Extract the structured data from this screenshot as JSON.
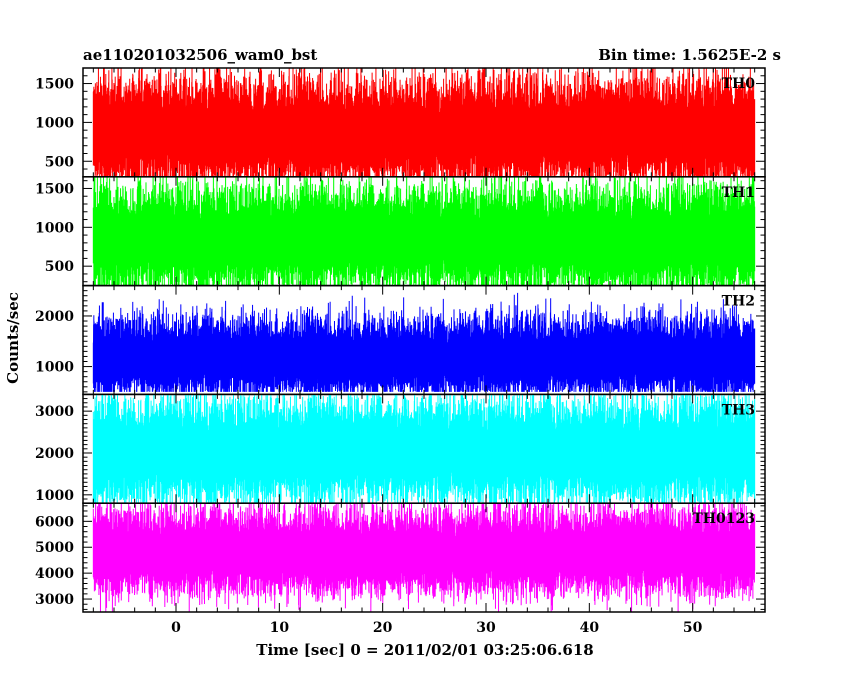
{
  "header": {
    "title": "ae110201032506_wam0_bst",
    "bin_time": "Bin time: 1.5625E-2 s"
  },
  "chart_data": {
    "type": "line",
    "title": "ae110201032506_wam0_bst",
    "subtitle": "Bin time: 1.5625E-2 s",
    "xlabel": "Time [sec] 0 = 2011/02/01 03:25:06.618",
    "ylabel": "Counts/sec",
    "xlim": [
      -9,
      57
    ],
    "x_data_range": [
      -8,
      56
    ],
    "x_ticks": [
      0,
      10,
      20,
      30,
      40,
      50
    ],
    "grid": false,
    "panels": [
      {
        "name": "TH0",
        "color": "#ff0000",
        "ylim": [
          300,
          1700
        ],
        "y_ticks": [
          500,
          1000,
          1500
        ],
        "baseline": 830,
        "spread": 330,
        "max": 1700,
        "min": 300
      },
      {
        "name": "TH1",
        "color": "#00ff00",
        "ylim": [
          250,
          1650
        ],
        "y_ticks": [
          500,
          1000,
          1500
        ],
        "baseline": 800,
        "spread": 320,
        "max": 1650,
        "min": 250
      },
      {
        "name": "TH2",
        "color": "#0000ff",
        "ylim": [
          450,
          2600
        ],
        "y_ticks": [
          1000,
          2000
        ],
        "baseline": 1130,
        "spread": 380,
        "max": 2550,
        "min": 500
      },
      {
        "name": "TH3",
        "color": "#00ffff",
        "ylim": [
          800,
          3400
        ],
        "y_ticks": [
          1000,
          2000,
          3000
        ],
        "baseline": 1950,
        "spread": 600,
        "max": 3400,
        "min": 800
      },
      {
        "name": "TH0123",
        "color": "#ff00ff",
        "ylim": [
          2500,
          6700
        ],
        "y_ticks": [
          3000,
          4000,
          5000,
          6000
        ],
        "baseline": 4700,
        "spread": 800,
        "max": 6700,
        "min": 2500
      }
    ]
  }
}
